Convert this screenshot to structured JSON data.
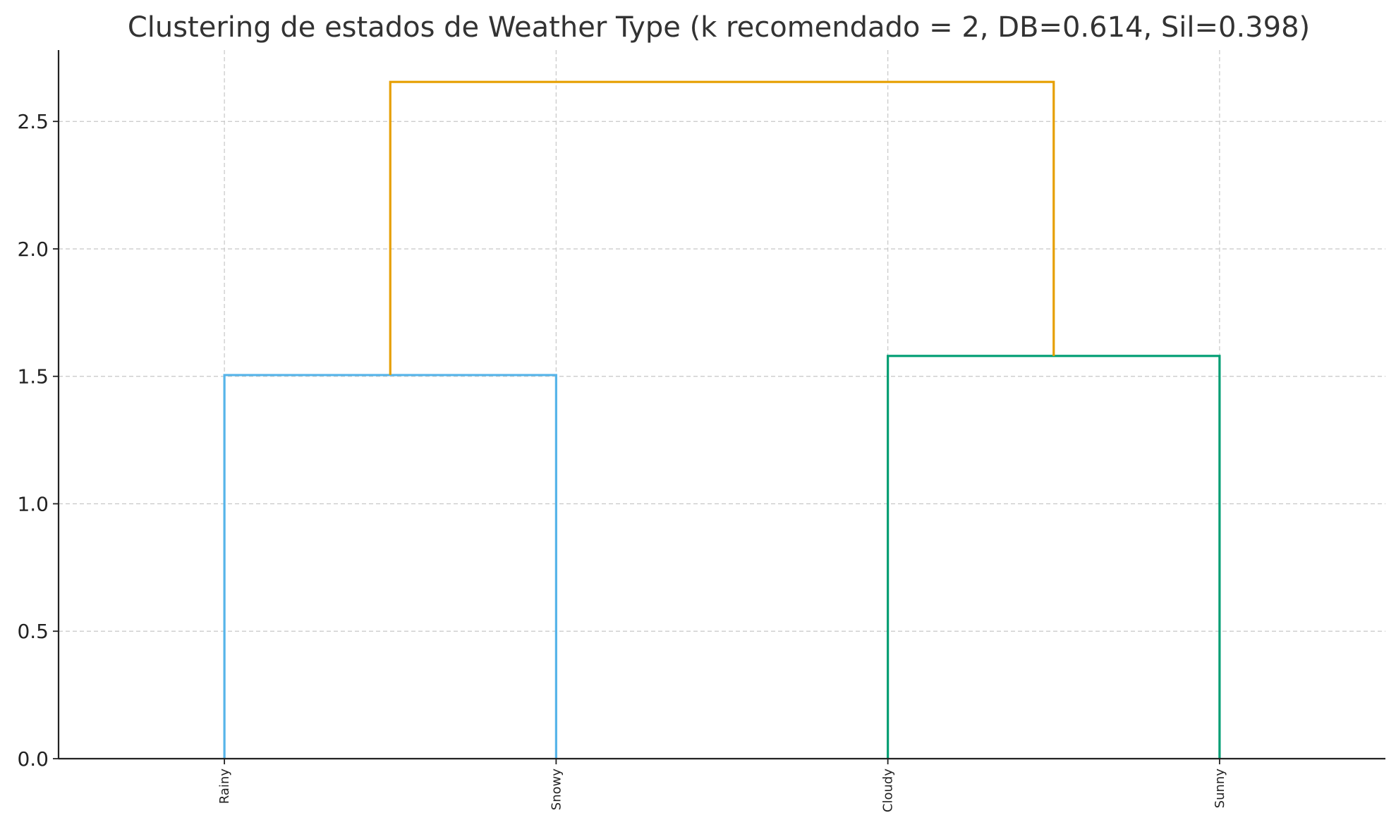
{
  "chart_data": {
    "type": "dendrogram",
    "title": "Clustering de estados de Weather Type (k recomendado = 2, DB=0.614, Sil=0.398)",
    "xlabel": "",
    "ylabel": "",
    "ylim": [
      0,
      2.78
    ],
    "yticks": [
      "0.0",
      "0.5",
      "1.0",
      "1.5",
      "2.0",
      "2.5"
    ],
    "leaves": [
      "Rainy",
      "Snowy",
      "Cloudy",
      "Sunny"
    ],
    "grid": true,
    "merges": [
      {
        "left": "Rainy",
        "right": "Snowy",
        "height": 1.505,
        "color": "#56b4e9"
      },
      {
        "left": "Cloudy",
        "right": "Sunny",
        "height": 1.58,
        "color": "#009e73"
      },
      {
        "left": "cluster:Rainy+Snowy",
        "right": "cluster:Cloudy+Sunny",
        "height": 2.655,
        "color": "#e69f00"
      }
    ]
  }
}
